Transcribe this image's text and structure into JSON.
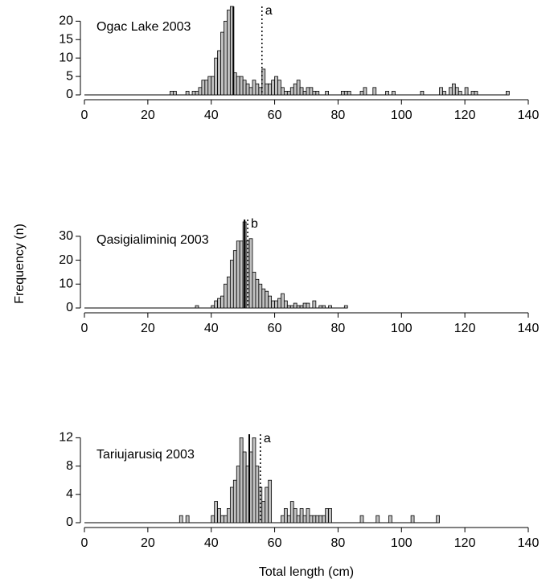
{
  "chart_data": [
    {
      "type": "histogram",
      "title": "Ogac Lake 2003",
      "color": "#c0c0c0",
      "bins": [
        26,
        27,
        28,
        29,
        30,
        31,
        32,
        33,
        34,
        35,
        36,
        37,
        38,
        39,
        40,
        41,
        42,
        43,
        44,
        45,
        46,
        47,
        48,
        49,
        50,
        51,
        52,
        53,
        54,
        55,
        56,
        57,
        58,
        59,
        60,
        61,
        62,
        63,
        64,
        65,
        66,
        67,
        68,
        69,
        70,
        71,
        72,
        73,
        74,
        75,
        76,
        77,
        78,
        79,
        80,
        81,
        82,
        83,
        84,
        85,
        86,
        87,
        88,
        89,
        90,
        91,
        92,
        93,
        94,
        95,
        96,
        97,
        98,
        99,
        100,
        101,
        102,
        103,
        104,
        105,
        106,
        107,
        108,
        109,
        110,
        111,
        112,
        113,
        114,
        115,
        116,
        117,
        118,
        119,
        120,
        121,
        122,
        123,
        124,
        125,
        126,
        127,
        128,
        129,
        130,
        131,
        132,
        133,
        134
      ],
      "values": [
        0,
        1,
        1,
        0,
        0,
        0,
        1,
        0,
        1,
        1,
        2,
        4,
        4,
        5,
        5,
        10,
        12,
        17,
        20,
        23,
        24,
        6,
        5,
        5,
        4,
        3,
        2,
        4,
        3,
        2,
        7,
        3,
        3,
        4,
        5,
        4,
        2,
        1,
        1,
        2,
        3,
        4,
        2,
        1,
        2,
        2,
        1,
        1,
        0,
        0,
        1,
        0,
        0,
        0,
        0,
        1,
        1,
        1,
        0,
        0,
        0,
        1,
        2,
        0,
        0,
        2,
        0,
        0,
        0,
        1,
        0,
        1,
        0,
        0,
        0,
        0,
        0,
        0,
        0,
        0,
        1,
        0,
        0,
        0,
        0,
        0,
        2,
        1,
        0,
        2,
        3,
        2,
        1,
        0,
        2,
        0,
        1,
        1,
        0,
        0,
        0,
        0,
        0,
        0,
        0,
        0,
        0,
        1
      ],
      "xlim": [
        0,
        140
      ],
      "xticks": [
        0,
        20,
        40,
        60,
        80,
        100,
        120,
        140
      ],
      "ylim": [
        0,
        24
      ],
      "yticks": [
        0,
        5,
        10,
        15,
        20
      ],
      "lines": [
        {
          "x": 47,
          "style": "solid"
        },
        {
          "x": 56,
          "style": "dotted",
          "label": "a"
        }
      ]
    },
    {
      "type": "histogram",
      "title": "Qasigialiminiq 2003",
      "color": "#c0c0c0",
      "ylabel": "Frequency (n)",
      "bins": [
        34,
        35,
        36,
        37,
        38,
        39,
        40,
        41,
        42,
        43,
        44,
        45,
        46,
        47,
        48,
        49,
        50,
        51,
        52,
        53,
        54,
        55,
        56,
        57,
        58,
        59,
        60,
        61,
        62,
        63,
        64,
        65,
        66,
        67,
        68,
        69,
        70,
        71,
        72,
        73,
        74,
        75,
        76,
        77,
        78,
        79,
        80,
        81,
        82,
        83
      ],
      "values": [
        0,
        1,
        0,
        0,
        0,
        0,
        1,
        3,
        4,
        5,
        10,
        13,
        20,
        24,
        28,
        28,
        36,
        28,
        29,
        15,
        12,
        10,
        8,
        7,
        5,
        3,
        3,
        4,
        6,
        3,
        1,
        1,
        2,
        1,
        1,
        2,
        2,
        0,
        3,
        0,
        1,
        1,
        0,
        1,
        0,
        0,
        0,
        0,
        1
      ],
      "xlim": [
        0,
        140
      ],
      "xticks": [
        0,
        20,
        40,
        60,
        80,
        100,
        120,
        140
      ],
      "ylim": [
        0,
        37
      ],
      "yticks": [
        0,
        10,
        20,
        30
      ],
      "lines": [
        {
          "x": 50.5,
          "style": "solid"
        },
        {
          "x": 51.5,
          "style": "dotted",
          "label": "b"
        }
      ]
    },
    {
      "type": "histogram",
      "title": "Tariujarusiq 2003",
      "color": "#c0c0c0",
      "xlabel": "Total length (cm)",
      "bins": [
        29,
        30,
        31,
        32,
        33,
        34,
        35,
        36,
        37,
        38,
        39,
        40,
        41,
        42,
        43,
        44,
        45,
        46,
        47,
        48,
        49,
        50,
        51,
        52,
        53,
        54,
        55,
        56,
        57,
        58,
        59,
        60,
        61,
        62,
        63,
        64,
        65,
        66,
        67,
        68,
        69,
        70,
        71,
        72,
        73,
        74,
        75,
        76,
        77,
        78,
        79,
        80,
        81,
        82,
        83,
        84,
        85,
        86,
        87,
        88,
        89,
        90,
        91,
        92,
        93,
        94,
        95,
        96,
        97,
        98,
        99,
        100,
        101,
        102,
        103,
        104,
        105,
        106,
        107,
        108,
        109,
        110,
        111,
        112
      ],
      "values": [
        0,
        1,
        0,
        1,
        0,
        0,
        0,
        0,
        0,
        0,
        0,
        1,
        3,
        2,
        1,
        1,
        2,
        5,
        6,
        8,
        12,
        10,
        8,
        10,
        12,
        8,
        5,
        3,
        5,
        6,
        0,
        0,
        0,
        1,
        2,
        1,
        3,
        2,
        1,
        2,
        1,
        2,
        1,
        1,
        1,
        1,
        1,
        2,
        2,
        0,
        0,
        0,
        0,
        0,
        0,
        0,
        0,
        0,
        1,
        0,
        0,
        0,
        0,
        1,
        0,
        0,
        0,
        1,
        0,
        0,
        0,
        0,
        0,
        0,
        1,
        0,
        0,
        0,
        0,
        0,
        0,
        0,
        1
      ],
      "xlim": [
        0,
        140
      ],
      "xticks": [
        0,
        20,
        40,
        60,
        80,
        100,
        120,
        140
      ],
      "ylim": [
        0,
        12.5
      ],
      "yticks": [
        0,
        4,
        8,
        12
      ],
      "lines": [
        {
          "x": 52,
          "style": "solid"
        },
        {
          "x": 55.5,
          "style": "dotted",
          "label": "a"
        }
      ]
    }
  ]
}
